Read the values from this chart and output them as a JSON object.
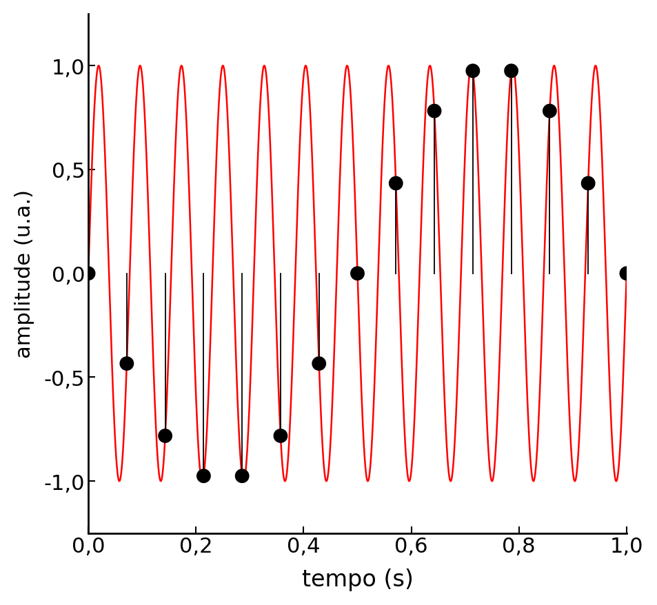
{
  "signal_freq": 13,
  "sample_freq": 14,
  "duration": 1.0,
  "signal_color": "#FF0000",
  "sample_color": "#000000",
  "line_color": "#000000",
  "xlabel": "tempo (s)",
  "ylabel": "amplitude (u.a.)",
  "xlim": [
    0.0,
    1.0
  ],
  "ylim": [
    -1.25,
    1.25
  ],
  "yticks": [
    -1.0,
    -0.5,
    0.0,
    0.5,
    1.0
  ],
  "xticks": [
    0.0,
    0.2,
    0.4,
    0.6,
    0.8,
    1.0
  ],
  "xlabel_fontsize": 24,
  "ylabel_fontsize": 22,
  "tick_fontsize": 22,
  "signal_linewidth": 1.8,
  "marker_size": 15,
  "vline_linewidth": 1.3,
  "background_color": "#ffffff",
  "n_signal_points": 10000
}
